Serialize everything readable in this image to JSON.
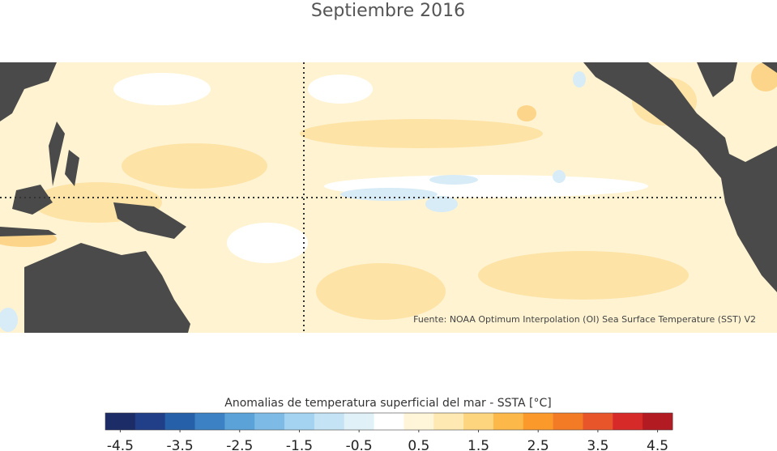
{
  "header": {
    "title": "Septiembre 2016"
  },
  "map": {
    "source": "Fuente: NOAA Optimum Interpolation (OI) Sea Surface Temperature (SST) V2"
  },
  "colorbar": {
    "label": "Anomalias de temperatura superficial del mar - SSTA  [°C]",
    "ticks": [
      -4.5,
      -3.5,
      -2.5,
      -1.5,
      -0.5,
      0.5,
      1.5,
      2.5,
      3.5,
      4.5
    ],
    "colors": [
      "#1b2c66",
      "#203f88",
      "#2660a8",
      "#3c81c3",
      "#5aa2d8",
      "#7dbbe6",
      "#a3d3f0",
      "#c4e4f5",
      "#e0f1f8",
      "#ffffff",
      "#fff6da",
      "#fee9b2",
      "#fdd57f",
      "#fdb84a",
      "#fb9a2b",
      "#f47b26",
      "#e8552b",
      "#d62a29",
      "#b31b22"
    ]
  }
}
